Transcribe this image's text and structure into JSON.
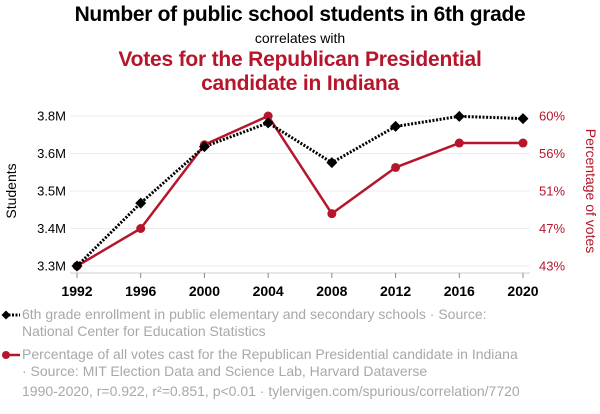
{
  "title": "Number of public school students in 6th grade",
  "subtitle": "correlates with",
  "title2_line1": "Votes for the Republican Presidential",
  "title2_line2": "candidate in Indiana",
  "colors": {
    "series1": "#000000",
    "series2": "#b6162b",
    "grid": "#ececec",
    "axis": "#cccccc",
    "legend_text": "#a8a8a8"
  },
  "legend": [
    {
      "line1": "6th grade enrollment in public elementary and secondary schools · Source:",
      "line2": "National Center for Education Statistics"
    },
    {
      "line1": "Percentage of all votes cast for the Republican Presidential candidate in Indiana",
      "line2": "· Source: MIT Election Data and Science Lab, Harvard Dataverse"
    }
  ],
  "footer": "1990-2020, r=0.922, r²=0.851, p<0.01 · tylervigen.com/spurious/correlation/7720",
  "chart_data": {
    "type": "line",
    "title": "Number of public school students in 6th grade correlates with Votes for the Republican Presidential candidate in Indiana",
    "x": [
      1992,
      1996,
      2000,
      2004,
      2008,
      2012,
      2016,
      2020
    ],
    "xticks": [
      "1992",
      "1996",
      "2000",
      "2004",
      "2008",
      "2012",
      "2016",
      "2020"
    ],
    "grid": true,
    "series": [
      {
        "name": "6th grade enrollment in public elementary and secondary schools",
        "axis": "left",
        "style": "dotted-diamond",
        "unit": "millions",
        "values": [
          3.3,
          3.493,
          3.666,
          3.739,
          3.617,
          3.728,
          3.759,
          3.752
        ]
      },
      {
        "name": "Percentage of all votes cast for the Republican Presidential candidate in Indiana",
        "axis": "right",
        "style": "solid-circle",
        "unit": "percent",
        "values": [
          42.8,
          47.1,
          56.7,
          60.0,
          48.8,
          54.1,
          56.9,
          56.9
        ]
      }
    ],
    "left_axis": {
      "label": "Students",
      "ylim": [
        3.3,
        3.76
      ],
      "ticks": [
        "3.3M",
        "3.4M",
        "3.5M",
        "3.6M",
        "3.8M"
      ]
    },
    "right_axis": {
      "label": "Percentage of votes",
      "ylim": [
        42.8,
        60.0
      ],
      "ticks": [
        "43%",
        "47%",
        "51%",
        "56%",
        "60%"
      ]
    },
    "legend_position": "bottom"
  }
}
